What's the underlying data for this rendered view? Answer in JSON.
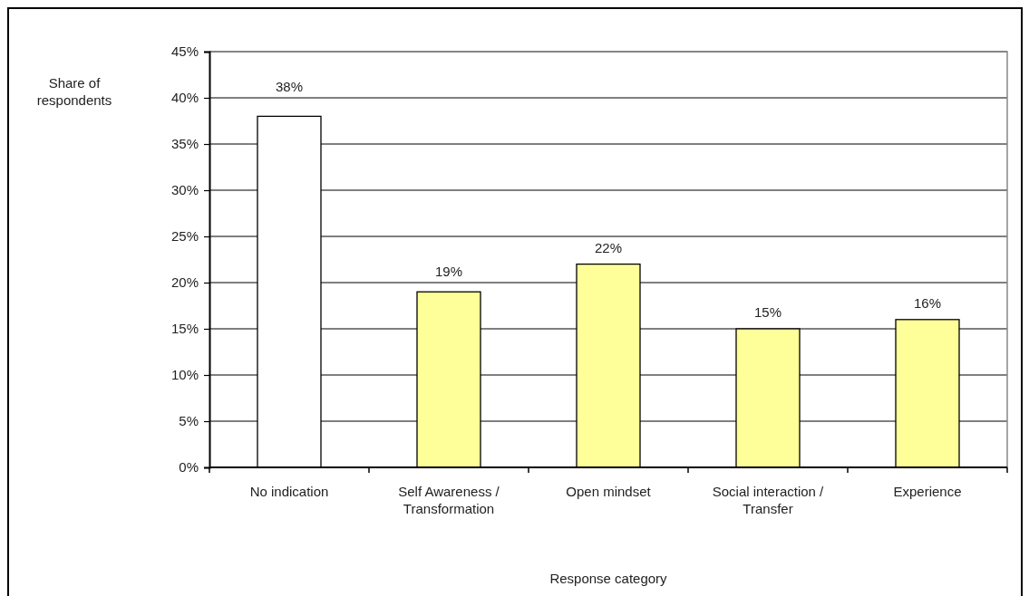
{
  "chart_data": {
    "type": "bar",
    "xlabel": "Response category",
    "ylabel": "Share of respondents",
    "categories": [
      "No indication",
      "Self Awareness / Transformation",
      "Open mindset",
      "Social interaction / Transfer",
      "Experience"
    ],
    "values": [
      38,
      19,
      22,
      15,
      16
    ],
    "colors": [
      "#ffffff",
      "#ffff99",
      "#ffff99",
      "#ffff99",
      "#ffff99"
    ],
    "value_labels": [
      "38%",
      "19%",
      "22%",
      "15%",
      "16%"
    ],
    "ylim": [
      0,
      45
    ],
    "yticks": [
      {
        "value": 0,
        "label": "0%"
      },
      {
        "value": 5,
        "label": "5%"
      },
      {
        "value": 10,
        "label": "10%"
      },
      {
        "value": 15,
        "label": "15%"
      },
      {
        "value": 20,
        "label": "20%"
      },
      {
        "value": 25,
        "label": "25%"
      },
      {
        "value": 30,
        "label": "30%"
      },
      {
        "value": 35,
        "label": "35%"
      },
      {
        "value": 40,
        "label": "40%"
      },
      {
        "value": 45,
        "label": "45%"
      }
    ],
    "grid": "y"
  }
}
